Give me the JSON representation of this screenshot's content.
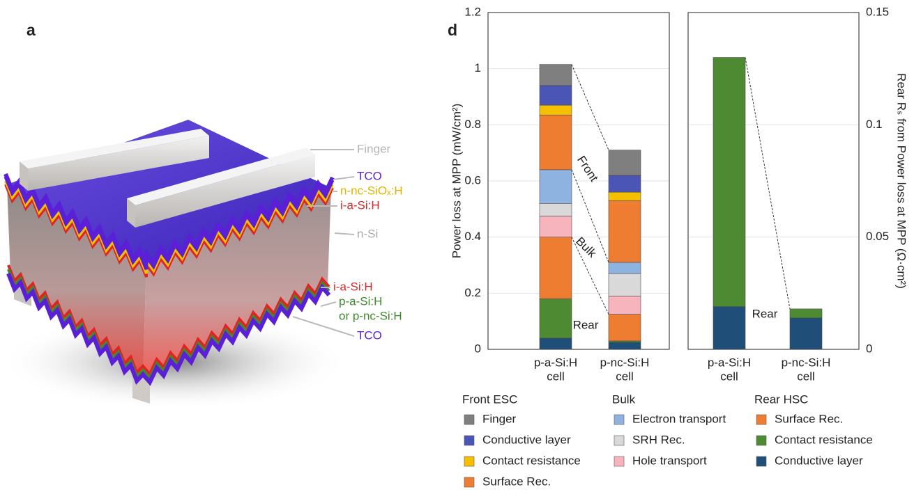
{
  "illustration": {
    "panel_label": "a",
    "labels": [
      {
        "text": "Finger",
        "color": "#b5b5b5"
      },
      {
        "text": "TCO",
        "color": "#5a1fd6"
      },
      {
        "text": "n-nc-SiOₓ:H",
        "color": "#e3b100"
      },
      {
        "text": "i-a-Si:H",
        "color": "#e02424"
      },
      {
        "text": "n-Si",
        "color": "#a8a8a8"
      },
      {
        "text": "i-a-Si:H",
        "color": "#e02424"
      },
      {
        "text": "p-a-Si:H",
        "color": "#3d8a2a"
      },
      {
        "text": "or p-nc-Si:H",
        "color": "#3d8a2a"
      },
      {
        "text": "TCO",
        "color": "#5a1fd6"
      }
    ]
  },
  "chart_data": [
    {
      "type": "stacked_bar",
      "panel_label": "d",
      "ylabel": "Power loss at MPP (mW/cm²)",
      "categories": [
        [
          "p-a-Si:H",
          "cell"
        ],
        [
          "p-nc-Si:H",
          "cell"
        ]
      ],
      "ylim": [
        0,
        1.2
      ],
      "yticks": [
        0,
        0.2,
        0.4,
        0.6,
        0.8,
        1,
        1.2
      ],
      "grid": true,
      "legend_groups": [
        "Front ESC",
        "Bulk",
        "Rear HSC"
      ],
      "series": [
        {
          "name": "Finger",
          "group": 0,
          "color": "#7f7f7f",
          "values": [
            0.075,
            0.09
          ]
        },
        {
          "name": "Conductive layer",
          "group": 0,
          "color": "#4a55b5",
          "values": [
            0.07,
            0.06
          ]
        },
        {
          "name": "Contact resistance",
          "group": 0,
          "color": "#f5c000",
          "values": [
            0.035,
            0.03
          ]
        },
        {
          "name": "Surface Rec.",
          "group": 0,
          "color": "#ee7d31",
          "values": [
            0.195,
            0.22
          ]
        },
        {
          "name": "Electron transport",
          "group": 1,
          "color": "#8fb3e0",
          "values": [
            0.12,
            0.04
          ]
        },
        {
          "name": "SRH Rec.",
          "group": 1,
          "color": "#d9d9d9",
          "values": [
            0.045,
            0.08
          ]
        },
        {
          "name": "Hole transport",
          "group": 1,
          "color": "#f8b4bd",
          "values": [
            0.075,
            0.065
          ]
        },
        {
          "name": "Surface Rec.",
          "group": 2,
          "color": "#ee7d31",
          "values": [
            0.22,
            0.095
          ]
        },
        {
          "name": "Contact resistance",
          "group": 2,
          "color": "#4e8a32",
          "values": [
            0.14,
            0.005
          ]
        },
        {
          "name": "Conductive layer",
          "group": 2,
          "color": "#1f4e79",
          "values": [
            0.04,
            0.025
          ]
        }
      ],
      "annotations": [
        "Front",
        "Bulk",
        "Rear"
      ]
    },
    {
      "type": "stacked_bar",
      "y2label": "Rear Rₛ from Power loss at MPP (Ω·cm²)",
      "categories": [
        [
          "p-a-Si:H",
          "cell"
        ],
        [
          "p-nc-Si:H",
          "cell"
        ]
      ],
      "y2lim": [
        0,
        0.15
      ],
      "y2ticks": [
        0,
        0.05,
        0.1,
        0.15
      ],
      "grid": true,
      "series": [
        {
          "color": "#4e8a32",
          "values": [
            0.111,
            0.004
          ],
          "axis": "y2"
        },
        {
          "color": "#1f4e79",
          "values": [
            0.019,
            0.014
          ],
          "axis": "y2"
        }
      ],
      "annotations": [
        "Rear"
      ]
    }
  ]
}
